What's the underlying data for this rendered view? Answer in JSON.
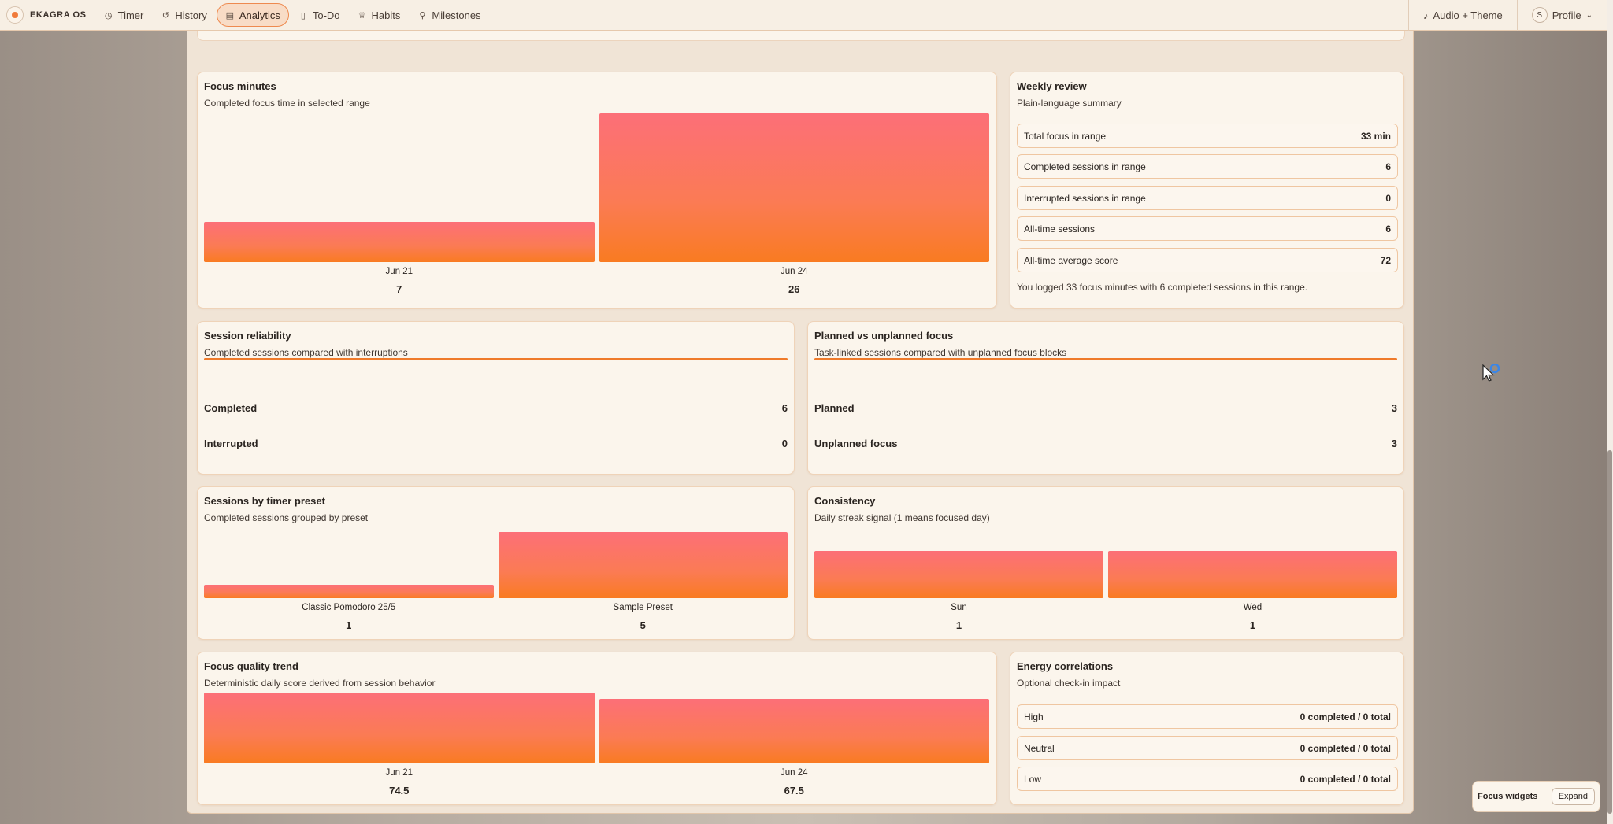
{
  "brand": {
    "name": "EKAGRA OS"
  },
  "nav": [
    {
      "label": "Timer",
      "icon": "timer-icon",
      "glyph": "◷"
    },
    {
      "label": "History",
      "icon": "history-icon",
      "glyph": "↺"
    },
    {
      "label": "Analytics",
      "icon": "analytics-icon",
      "glyph": "▤"
    },
    {
      "label": "To-Do",
      "icon": "todo-icon",
      "glyph": "▯"
    },
    {
      "label": "Habits",
      "icon": "habits-icon",
      "glyph": "♕"
    },
    {
      "label": "Milestones",
      "icon": "milestones-icon",
      "glyph": "⚲"
    }
  ],
  "top_right": {
    "audio_label": "Audio + Theme",
    "avatar_initial": "S",
    "profile_label": "Profile"
  },
  "focus_minutes": {
    "title": "Focus minutes",
    "subtitle": "Completed focus time in selected range",
    "chart_data": {
      "type": "bar",
      "categories": [
        "Jun 21",
        "Jun 24"
      ],
      "values": [
        7,
        26
      ],
      "title": "Focus minutes"
    }
  },
  "weekly_review": {
    "title": "Weekly review",
    "subtitle": "Plain-language summary",
    "stats": [
      {
        "label": "Total focus in range",
        "value": "33 min"
      },
      {
        "label": "Completed sessions in range",
        "value": "6"
      },
      {
        "label": "Interrupted sessions in range",
        "value": "0"
      },
      {
        "label": "All-time sessions",
        "value": "6"
      },
      {
        "label": "All-time average score",
        "value": "72"
      }
    ],
    "summary": "You logged 33 focus minutes with 6 completed sessions in this range."
  },
  "session_reliability": {
    "title": "Session reliability",
    "subtitle": "Completed sessions compared with interruptions",
    "rows": [
      {
        "label": "Completed",
        "value": "6"
      },
      {
        "label": "Interrupted",
        "value": "0"
      }
    ]
  },
  "planned_vs_unplanned": {
    "title": "Planned vs unplanned focus",
    "subtitle": "Task-linked sessions compared with unplanned focus blocks",
    "rows": [
      {
        "label": "Planned",
        "value": "3"
      },
      {
        "label": "Unplanned focus",
        "value": "3"
      }
    ]
  },
  "sessions_by_preset": {
    "title": "Sessions by timer preset",
    "subtitle": "Completed sessions grouped by preset",
    "chart_data": {
      "type": "bar",
      "categories": [
        "Classic Pomodoro 25/5",
        "Sample Preset"
      ],
      "values": [
        1,
        5
      ],
      "title": "Sessions by timer preset"
    }
  },
  "consistency": {
    "title": "Consistency",
    "subtitle": "Daily streak signal (1 means focused day)",
    "chart_data": {
      "type": "bar",
      "categories": [
        "Sun",
        "Wed"
      ],
      "values": [
        1,
        1
      ],
      "title": "Consistency"
    }
  },
  "focus_quality": {
    "title": "Focus quality trend",
    "subtitle": "Deterministic daily score derived from session behavior",
    "chart_data": {
      "type": "bar",
      "categories": [
        "Jun 21",
        "Jun 24"
      ],
      "values": [
        74.5,
        67.5
      ],
      "title": "Focus quality trend"
    }
  },
  "energy": {
    "title": "Energy correlations",
    "subtitle": "Optional check-in impact",
    "rows": [
      {
        "label": "High",
        "value": "0 completed / 0 total"
      },
      {
        "label": "Neutral",
        "value": "0 completed / 0 total"
      },
      {
        "label": "Low",
        "value": "0 completed / 0 total"
      }
    ]
  },
  "widget": {
    "title": "Focus widgets",
    "button": "Expand"
  },
  "colors": {
    "accent": "#f97b21",
    "bar_top": "#fc6f78",
    "border": "#efd3b8",
    "card": "#fbf5ec"
  }
}
